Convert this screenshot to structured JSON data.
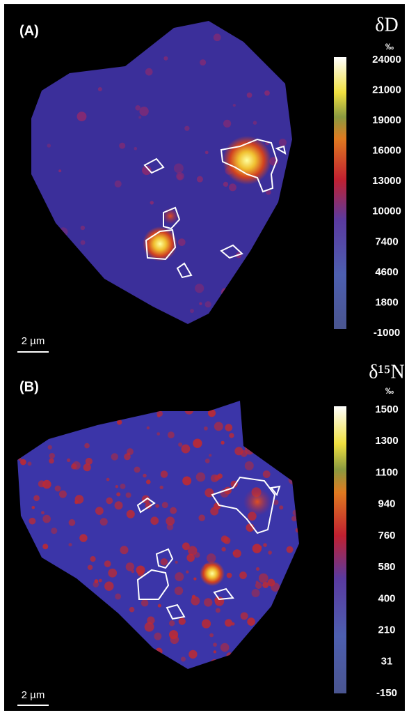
{
  "panels": [
    {
      "label": "(A)",
      "title": "δD",
      "unit": "‰",
      "ticks": [
        24000,
        21000,
        19000,
        16000,
        13000,
        10000,
        7400,
        4600,
        1800,
        -1000
      ],
      "scale_bar": "2 µm"
    },
    {
      "label": "(B)",
      "title": "δ¹⁵N",
      "unit": "‰",
      "ticks": [
        1500,
        1300,
        1100,
        940,
        760,
        580,
        400,
        210,
        31,
        -150
      ],
      "scale_bar": "2 µm"
    }
  ]
}
